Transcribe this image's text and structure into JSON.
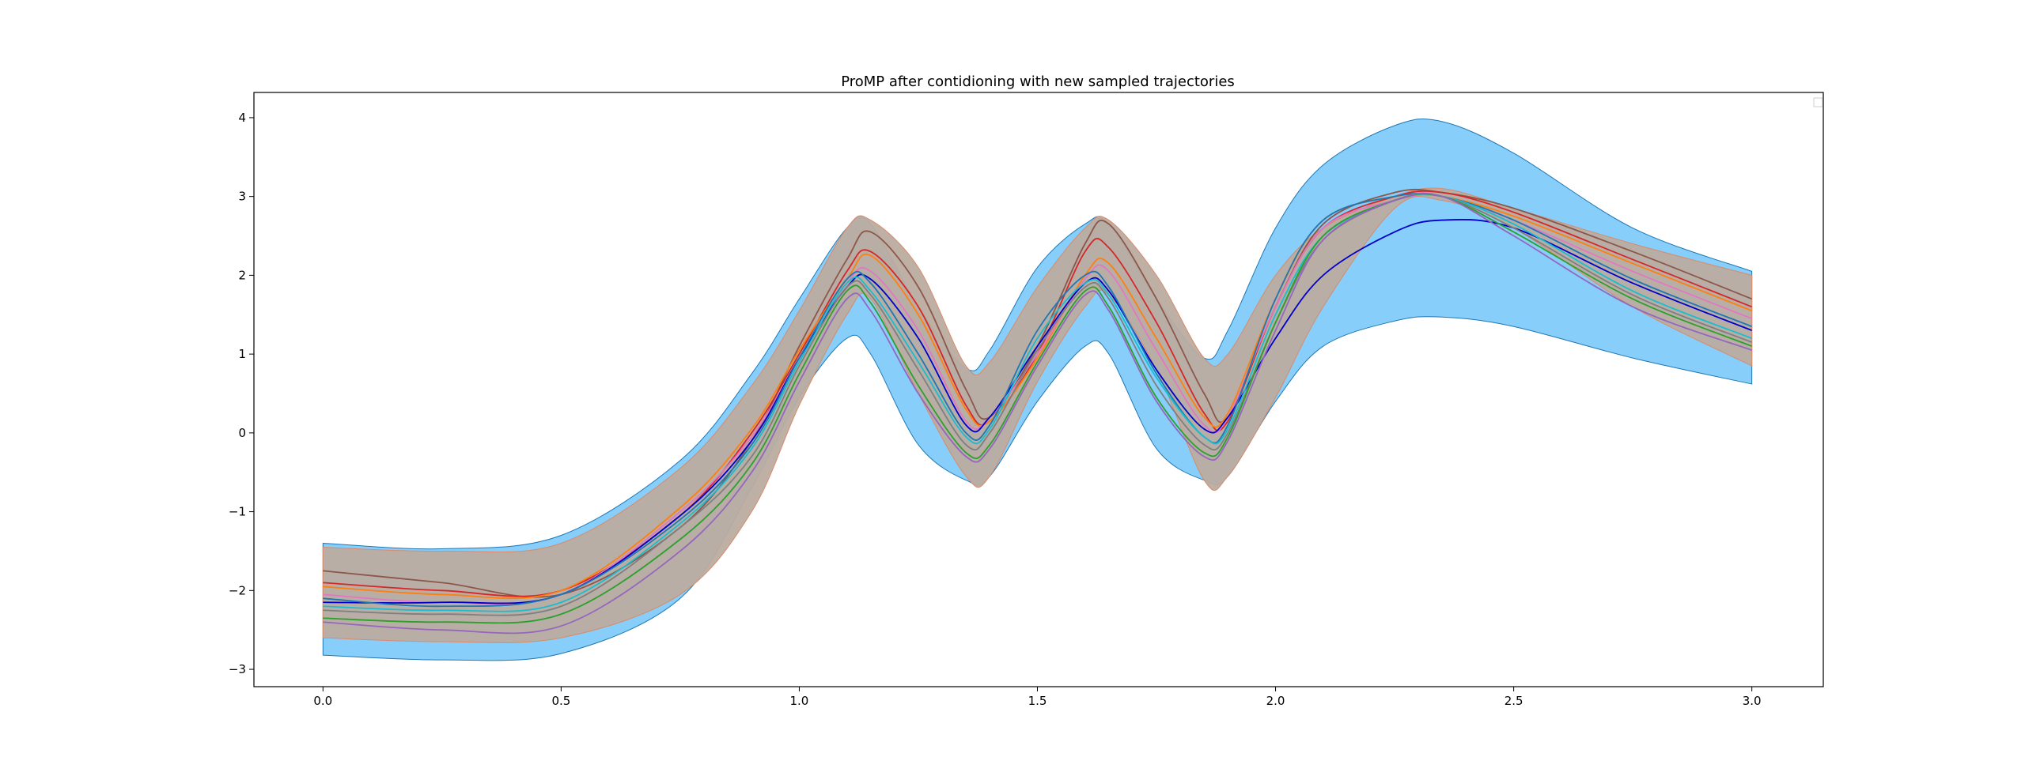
{
  "chart_data": {
    "type": "line",
    "title": "ProMP after contidioning with new sampled trajectories",
    "xlabel": "",
    "ylabel": "",
    "xlim": [
      -0.145,
      3.15
    ],
    "ylim": [
      -3.22,
      4.32
    ],
    "xticks": [
      0.0,
      0.5,
      1.0,
      1.5,
      2.0,
      2.5,
      3.0
    ],
    "xtick_labels": [
      "0.0",
      "0.5",
      "1.0",
      "1.5",
      "2.0",
      "2.5",
      "3.0"
    ],
    "yticks": [
      -3,
      -2,
      -1,
      0,
      1,
      2,
      3,
      4
    ],
    "ytick_labels": [
      "−3",
      "−2",
      "−1",
      "0",
      "1",
      "2",
      "3",
      "4"
    ],
    "grid": false,
    "legend": "top-right (empty)",
    "colors": {
      "prior_band": "#87cefa",
      "prior_band_edge": "#1f77b4",
      "conditioned_band": "#bcaca0",
      "conditioned_band_edge": "#d98a6a"
    },
    "x": [
      0.0,
      0.25,
      0.5,
      0.75,
      0.9,
      1.0,
      1.1,
      1.15,
      1.25,
      1.35,
      1.4,
      1.5,
      1.6,
      1.65,
      1.75,
      1.85,
      1.9,
      2.0,
      2.1,
      2.25,
      2.35,
      2.5,
      2.75,
      3.0
    ],
    "bands": [
      {
        "role": "prior",
        "upper": [
          -1.4,
          -1.47,
          -1.3,
          -0.35,
          0.75,
          1.7,
          2.6,
          2.65,
          1.6,
          0.82,
          1.05,
          2.1,
          2.65,
          2.65,
          1.7,
          0.95,
          1.3,
          2.6,
          3.4,
          3.9,
          3.95,
          3.55,
          2.6,
          2.05
        ],
        "lower": [
          -2.82,
          -2.88,
          -2.8,
          -2.1,
          -0.7,
          0.45,
          1.2,
          1.0,
          -0.15,
          -0.6,
          -0.55,
          0.4,
          1.1,
          1.0,
          -0.2,
          -0.6,
          -0.55,
          0.4,
          1.1,
          1.42,
          1.47,
          1.35,
          0.95,
          0.62
        ]
      },
      {
        "role": "conditioned",
        "upper": [
          -1.45,
          -1.5,
          -1.4,
          -0.45,
          0.6,
          1.55,
          2.6,
          2.7,
          2.1,
          0.85,
          0.9,
          1.85,
          2.6,
          2.7,
          2.0,
          0.95,
          1.0,
          2.0,
          2.6,
          3.0,
          3.1,
          2.85,
          2.4,
          2.0
        ],
        "lower": [
          -2.6,
          -2.65,
          -2.6,
          -2.05,
          -1.0,
          0.35,
          1.5,
          1.7,
          0.5,
          -0.55,
          -0.55,
          0.65,
          1.6,
          1.75,
          0.8,
          -0.6,
          -0.55,
          0.45,
          1.6,
          2.85,
          2.95,
          2.6,
          1.6,
          0.85
        ]
      }
    ],
    "series": [
      {
        "color": "#8c564b",
        "values": [
          -1.75,
          -1.9,
          -2.05,
          -1.2,
          -0.1,
          1.1,
          2.2,
          2.55,
          1.85,
          0.55,
          0.2,
          1.1,
          2.4,
          2.65,
          1.7,
          0.5,
          0.2,
          1.6,
          2.65,
          3.05,
          3.05,
          2.85,
          2.3,
          1.7
        ]
      },
      {
        "color": "#d62728",
        "values": [
          -1.9,
          -2.0,
          -2.0,
          -1.05,
          0.0,
          1.0,
          2.05,
          2.3,
          1.6,
          0.35,
          0.15,
          1.0,
          2.3,
          2.35,
          1.4,
          0.25,
          0.15,
          1.6,
          2.6,
          3.0,
          3.05,
          2.8,
          2.2,
          1.6
        ]
      },
      {
        "color": "#ff7f0e",
        "values": [
          -1.95,
          -2.05,
          -2.0,
          -0.95,
          0.05,
          1.05,
          1.95,
          2.25,
          1.5,
          0.3,
          0.15,
          0.95,
          2.0,
          2.15,
          1.2,
          0.2,
          0.25,
          1.7,
          2.7,
          3.0,
          3.0,
          2.75,
          2.15,
          1.55
        ]
      },
      {
        "color": "#e377c2",
        "values": [
          -2.05,
          -2.15,
          -2.05,
          -1.0,
          -0.05,
          0.95,
          1.9,
          2.05,
          1.3,
          0.15,
          0.2,
          1.0,
          1.95,
          2.05,
          1.05,
          0.1,
          0.2,
          1.6,
          2.6,
          2.95,
          3.0,
          2.7,
          2.05,
          1.45
        ]
      },
      {
        "color": "#0000cc",
        "values": [
          -2.15,
          -2.15,
          -2.05,
          -1.05,
          -0.1,
          0.95,
          1.85,
          1.95,
          1.2,
          0.1,
          0.2,
          1.1,
          1.9,
          1.8,
          0.8,
          0.05,
          0.2,
          1.2,
          2.0,
          2.55,
          2.7,
          2.6,
          1.9,
          1.3
        ]
      },
      {
        "color": "#1f77b4",
        "values": [
          -2.1,
          -2.2,
          -2.05,
          -1.1,
          -0.15,
          0.95,
          1.95,
          1.9,
          1.0,
          0.0,
          0.1,
          1.3,
          2.0,
          1.85,
          0.75,
          -0.05,
          0.1,
          1.7,
          2.7,
          3.0,
          3.0,
          2.7,
          1.95,
          1.35
        ]
      },
      {
        "color": "#17becf",
        "values": [
          -2.2,
          -2.25,
          -2.15,
          -1.15,
          -0.2,
          0.9,
          1.9,
          1.8,
          0.9,
          -0.05,
          0.05,
          1.2,
          1.9,
          1.75,
          0.7,
          -0.05,
          0.05,
          1.5,
          2.5,
          2.95,
          3.0,
          2.65,
          1.8,
          1.2
        ]
      },
      {
        "color": "#7f7f7f",
        "values": [
          -2.25,
          -2.3,
          -2.2,
          -1.2,
          -0.3,
          0.85,
          1.85,
          1.75,
          0.8,
          -0.15,
          0.0,
          1.05,
          1.85,
          1.7,
          0.6,
          -0.15,
          0.0,
          1.4,
          2.45,
          2.95,
          3.0,
          2.6,
          1.75,
          1.15
        ]
      },
      {
        "color": "#2ca02c",
        "values": [
          -2.35,
          -2.4,
          -2.3,
          -1.35,
          -0.4,
          0.75,
          1.8,
          1.65,
          0.6,
          -0.25,
          -0.15,
          0.9,
          1.8,
          1.6,
          0.45,
          -0.25,
          -0.05,
          1.4,
          2.5,
          2.95,
          3.0,
          2.55,
          1.7,
          1.1
        ]
      },
      {
        "color": "#9467bd",
        "values": [
          -2.4,
          -2.5,
          -2.45,
          -1.5,
          -0.5,
          0.65,
          1.7,
          1.55,
          0.5,
          -0.3,
          -0.2,
          0.85,
          1.75,
          1.55,
          0.4,
          -0.3,
          -0.1,
          1.3,
          2.45,
          2.95,
          3.0,
          2.5,
          1.6,
          1.05
        ]
      }
    ]
  }
}
